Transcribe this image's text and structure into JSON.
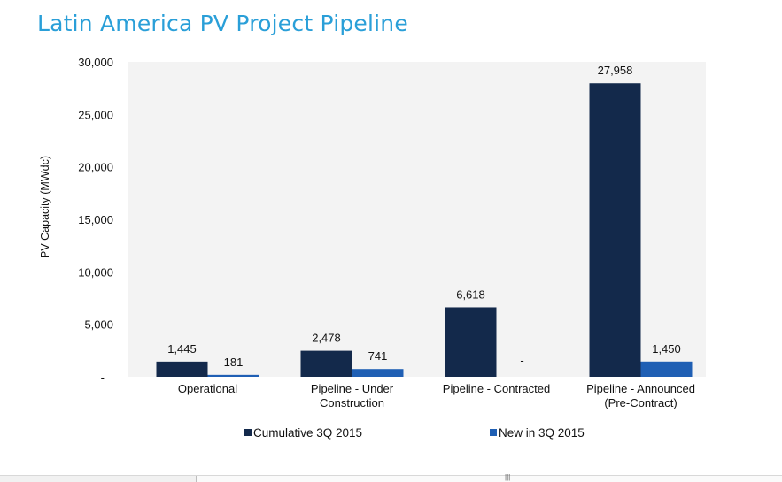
{
  "title": "Latin America PV Project Pipeline",
  "chart_data": {
    "type": "bar",
    "ylabel": "PV Capacity (MWdc)",
    "ylim": [
      0,
      30000
    ],
    "yticks": [
      0,
      5000,
      10000,
      15000,
      20000,
      25000,
      30000
    ],
    "ytick_labels": [
      "-",
      "5,000",
      "10,000",
      "15,000",
      "20,000",
      "25,000",
      "30,000"
    ],
    "grid": false,
    "legend_position": "bottom",
    "categories": [
      [
        "Operational"
      ],
      [
        "Pipeline - Under",
        "Construction"
      ],
      [
        "Pipeline - Contracted"
      ],
      [
        "Pipeline - Announced",
        "(Pre-Contract)"
      ]
    ],
    "series": [
      {
        "name": "Cumulative 3Q 2015",
        "color": "#13294b",
        "values": [
          1445,
          2478,
          6618,
          27958
        ],
        "labels": [
          "1,445",
          "2,478",
          "6,618",
          "27,958"
        ]
      },
      {
        "name": "New in 3Q 2015",
        "color": "#1f5fb4",
        "values": [
          181,
          741,
          0,
          1450
        ],
        "labels": [
          "181",
          "741",
          "-",
          "1,450"
        ]
      }
    ]
  },
  "colors": {
    "title": "#2a9fd8",
    "plot_bg": "#f3f3f3"
  }
}
